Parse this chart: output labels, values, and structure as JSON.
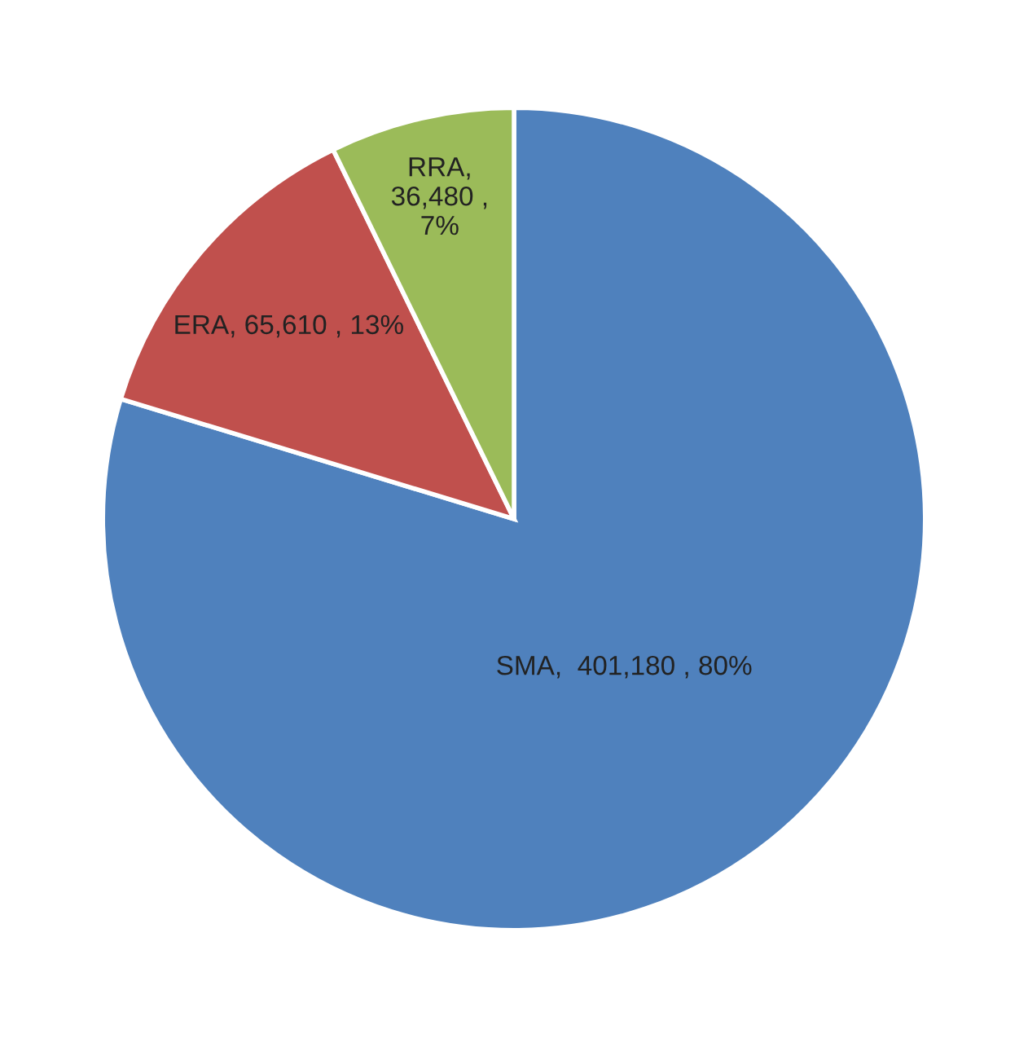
{
  "chart_data": {
    "type": "pie",
    "categories": [
      "SMA",
      "ERA",
      "RRA"
    ],
    "values": [
      401180,
      65610,
      36480
    ],
    "colors": [
      "#4f81bd",
      "#c0504d",
      "#9bbb59"
    ],
    "value_labels": [
      ",  401,180 , 80%",
      ", 65,610 , 13%",
      ",\n36,480 ,\n7%"
    ]
  }
}
